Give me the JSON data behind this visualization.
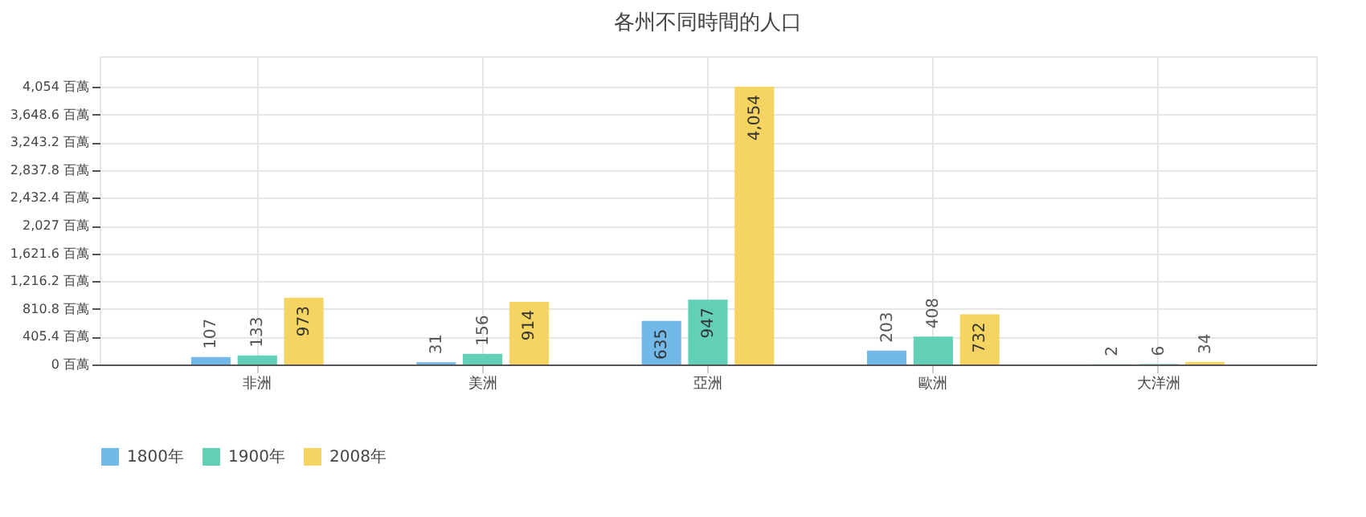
{
  "chart_data": {
    "type": "bar",
    "title": "各州不同時間的人口",
    "categories": [
      "非洲",
      "美洲",
      "亞洲",
      "歐洲",
      "大洋洲"
    ],
    "series": [
      {
        "name": "1800年",
        "color": "#72b8e8",
        "values": [
          107,
          31,
          635,
          203,
          2
        ],
        "value_labels": [
          "107",
          "31",
          "635",
          "203",
          "2"
        ]
      },
      {
        "name": "1900年",
        "color": "#62d0b6",
        "values": [
          133,
          156,
          947,
          408,
          6
        ],
        "value_labels": [
          "133",
          "156",
          "947",
          "408",
          "6"
        ]
      },
      {
        "name": "2008年",
        "color": "#f5d462",
        "values": [
          973,
          914,
          4054,
          732,
          34
        ],
        "value_labels": [
          "973",
          "914",
          "4,054",
          "732",
          "34"
        ]
      }
    ],
    "ylim": [
      0,
      4500
    ],
    "yticks": [
      {
        "value": 0,
        "label": "0 百萬"
      },
      {
        "value": 405.4,
        "label": "405.4 百萬"
      },
      {
        "value": 810.8,
        "label": "810.8 百萬"
      },
      {
        "value": 1216.2,
        "label": "1,216.2 百萬"
      },
      {
        "value": 1621.6,
        "label": "1,621.6 百萬"
      },
      {
        "value": 2027,
        "label": "2,027 百萬"
      },
      {
        "value": 2432.4,
        "label": "2,432.4 百萬"
      },
      {
        "value": 2837.8,
        "label": "2,837.8 百萬"
      },
      {
        "value": 3243.2,
        "label": "3,243.2 百萬"
      },
      {
        "value": 3648.6,
        "label": "3,648.6 百萬"
      },
      {
        "value": 4054,
        "label": "4,054 百萬"
      }
    ],
    "grid": true,
    "legend": "bottom",
    "data_labels": true
  }
}
